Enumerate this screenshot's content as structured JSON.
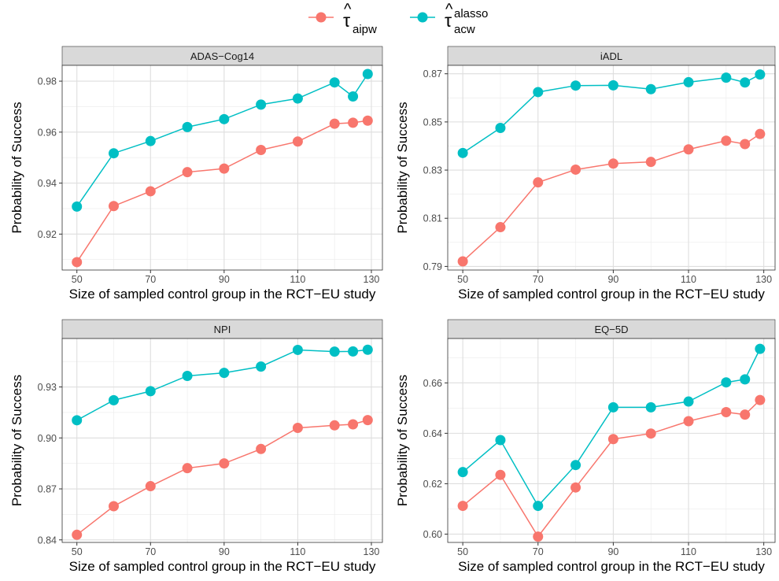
{
  "legend": {
    "entries": [
      {
        "symbol": "τ",
        "hat": "^",
        "sub": "aipw",
        "sup": "",
        "color": "#F8766D"
      },
      {
        "symbol": "τ",
        "hat": "^",
        "sub": "acw",
        "sup": "alasso",
        "color": "#00BFC4"
      }
    ]
  },
  "chart_data": [
    {
      "type": "line",
      "title": "ADAS−Cog14",
      "xlabel": "Size of sampled control group in the RCT−EU study",
      "ylabel": "Probability of Success",
      "x": [
        50,
        60,
        70,
        80,
        90,
        100,
        110,
        120,
        125,
        129
      ],
      "xticks": [
        50,
        70,
        90,
        110,
        130
      ],
      "yticks": [
        0.92,
        0.94,
        0.96,
        0.98
      ],
      "ytick_labels": [
        "0.92",
        "0.94",
        "0.96",
        "0.98"
      ],
      "xlim": [
        46,
        133
      ],
      "ylim": [
        0.9059,
        0.9862
      ],
      "series": [
        {
          "name": "τ̂aipw",
          "color": "#F8766D",
          "values": [
            0.909,
            0.931,
            0.9368,
            0.9443,
            0.9457,
            0.953,
            0.9563,
            0.9633,
            0.9637,
            0.9645
          ]
        },
        {
          "name": "τ̂acw alasso",
          "color": "#00BFC4",
          "values": [
            0.9308,
            0.9517,
            0.9565,
            0.962,
            0.9651,
            0.9708,
            0.9732,
            0.9795,
            0.974,
            0.9828
          ]
        }
      ]
    },
    {
      "type": "line",
      "title": "iADL",
      "xlabel": "Size of sampled control group in the RCT−EU study",
      "ylabel": "Probability of Success",
      "x": [
        50,
        60,
        70,
        80,
        90,
        100,
        110,
        120,
        125,
        129
      ],
      "xticks": [
        50,
        70,
        90,
        110,
        130
      ],
      "yticks": [
        0.79,
        0.81,
        0.83,
        0.85,
        0.87
      ],
      "ytick_labels": [
        "0.79",
        "0.81",
        "0.83",
        "0.85",
        "0.87"
      ],
      "xlim": [
        46,
        133
      ],
      "ylim": [
        0.7885,
        0.8735
      ],
      "series": [
        {
          "name": "τ̂aipw",
          "color": "#F8766D",
          "values": [
            0.7921,
            0.8063,
            0.8249,
            0.8302,
            0.8327,
            0.8334,
            0.8386,
            0.8422,
            0.8408,
            0.845
          ]
        },
        {
          "name": "τ̂acw alasso",
          "color": "#00BFC4",
          "values": [
            0.8371,
            0.8475,
            0.8624,
            0.8651,
            0.8652,
            0.8636,
            0.8665,
            0.8684,
            0.8664,
            0.8697
          ]
        }
      ]
    },
    {
      "type": "line",
      "title": "NPI",
      "xlabel": "Size of sampled control group in the RCT−EU study",
      "ylabel": "Probability of Success",
      "x": [
        50,
        60,
        70,
        80,
        90,
        100,
        110,
        120,
        125,
        129
      ],
      "xticks": [
        50,
        70,
        90,
        110,
        130
      ],
      "yticks": [
        0.84,
        0.87,
        0.9,
        0.93
      ],
      "ytick_labels": [
        "0.84",
        "0.87",
        "0.90",
        "0.93"
      ],
      "xlim": [
        46,
        133
      ],
      "ylim": [
        0.8385,
        0.9585
      ],
      "series": [
        {
          "name": "τ̂aipw",
          "color": "#F8766D",
          "values": [
            0.843,
            0.8598,
            0.8716,
            0.8822,
            0.885,
            0.8935,
            0.9059,
            0.9074,
            0.908,
            0.9105
          ]
        },
        {
          "name": "τ̂acw alasso",
          "color": "#00BFC4",
          "values": [
            0.9104,
            0.9222,
            0.9275,
            0.9365,
            0.9383,
            0.942,
            0.9518,
            0.9508,
            0.9509,
            0.9519
          ]
        }
      ]
    },
    {
      "type": "line",
      "title": "EQ−5D",
      "xlabel": "Size of sampled control group in the RCT−EU study",
      "ylabel": "Probability of Success",
      "x": [
        50,
        60,
        70,
        80,
        90,
        100,
        110,
        120,
        125,
        129
      ],
      "xticks": [
        50,
        70,
        90,
        110,
        130
      ],
      "yticks": [
        0.6,
        0.62,
        0.64,
        0.66
      ],
      "ytick_labels": [
        "0.60",
        "0.62",
        "0.64",
        "0.66"
      ],
      "xlim": [
        46,
        133
      ],
      "ylim": [
        0.5967,
        0.6776
      ],
      "series": [
        {
          "name": "τ̂aipw",
          "color": "#F8766D",
          "values": [
            0.6112,
            0.6235,
            0.599,
            0.6185,
            0.6377,
            0.6399,
            0.6448,
            0.6484,
            0.6474,
            0.6532
          ]
        },
        {
          "name": "τ̂acw alasso",
          "color": "#00BFC4",
          "values": [
            0.6246,
            0.6373,
            0.6112,
            0.6274,
            0.6503,
            0.6503,
            0.6526,
            0.6602,
            0.6614,
            0.6735
          ]
        }
      ]
    }
  ]
}
